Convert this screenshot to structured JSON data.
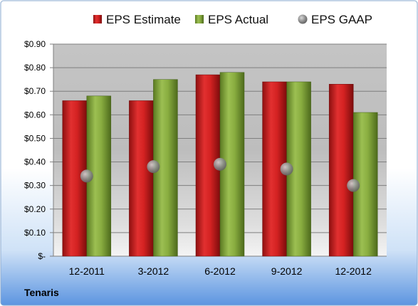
{
  "company": "Tenaris",
  "chart_data": {
    "type": "bar",
    "categories": [
      "12-2011",
      "3-2012",
      "6-2012",
      "9-2012",
      "12-2012"
    ],
    "series": [
      {
        "name": "EPS Estimate",
        "kind": "bar",
        "color": "#d21f1f",
        "values": [
          0.66,
          0.66,
          0.77,
          0.74,
          0.73
        ]
      },
      {
        "name": "EPS Actual",
        "kind": "bar",
        "color": "#84a83a",
        "values": [
          0.68,
          0.75,
          0.78,
          0.74,
          0.61
        ]
      },
      {
        "name": "EPS GAAP",
        "kind": "scatter",
        "color": "#9a9a9a",
        "values": [
          0.34,
          0.38,
          0.39,
          0.37,
          0.3
        ]
      }
    ],
    "y_ticks": [
      "$-",
      "$0.10",
      "$0.20",
      "$0.30",
      "$0.40",
      "$0.50",
      "$0.60",
      "$0.70",
      "$0.80",
      "$0.90"
    ],
    "ylim": [
      0,
      0.9
    ],
    "y_step": 0.1,
    "grid": true,
    "legend_position": "top"
  }
}
